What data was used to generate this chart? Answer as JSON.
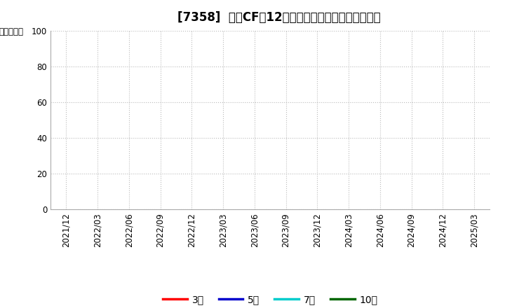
{
  "title": "[7358]  投資CFの12か月移動合計の標準偏差の推移",
  "ylabel": "（百万円）",
  "ylim": [
    0,
    100
  ],
  "yticks": [
    0,
    20,
    40,
    60,
    80,
    100
  ],
  "xticklabels": [
    "2021/12",
    "2022/03",
    "2022/06",
    "2022/09",
    "2022/12",
    "2023/03",
    "2023/06",
    "2023/09",
    "2023/12",
    "2024/03",
    "2024/06",
    "2024/09",
    "2024/12",
    "2025/03"
  ],
  "legend_entries": [
    {
      "label": "3年",
      "color": "#ff0000"
    },
    {
      "label": "5年",
      "color": "#0000cc"
    },
    {
      "label": "7年",
      "color": "#00cccc"
    },
    {
      "label": "10年",
      "color": "#006600"
    }
  ],
  "background_color": "#ffffff",
  "grid_color": "#bbbbbb",
  "title_fontsize": 12,
  "axis_fontsize": 8.5,
  "ylabel_fontsize": 8.5,
  "legend_fontsize": 10
}
